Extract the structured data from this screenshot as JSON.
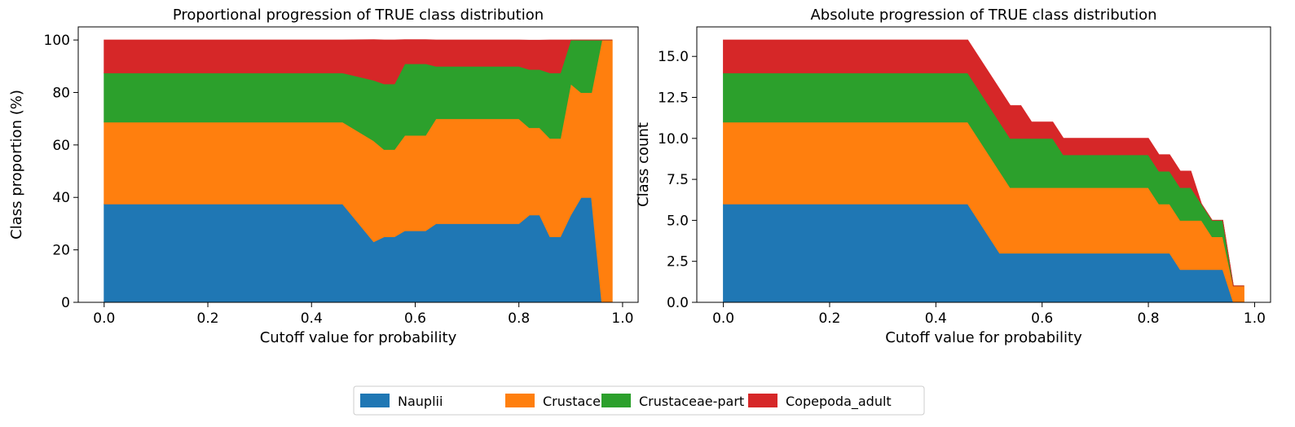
{
  "chart_data": [
    {
      "type": "area",
      "title": "Proportional progression of TRUE class distribution",
      "xlabel": "Cutoff value for probability",
      "ylabel": "Class proportion (%)",
      "xlim": [
        -0.05,
        1.03
      ],
      "ylim": [
        0,
        105
      ],
      "xticks": [
        0.0,
        0.2,
        0.4,
        0.6,
        0.8,
        1.0
      ],
      "xtick_labels": [
        "0.0",
        "0.2",
        "0.4",
        "0.6",
        "0.8",
        "1.0"
      ],
      "yticks": [
        0,
        20,
        40,
        60,
        80,
        100
      ],
      "ytick_labels": [
        "0",
        "20",
        "40",
        "60",
        "80",
        "100"
      ],
      "x": [
        0.0,
        0.46,
        0.52,
        0.54,
        0.56,
        0.58,
        0.6,
        0.62,
        0.64,
        0.8,
        0.82,
        0.84,
        0.86,
        0.88,
        0.9,
        0.92,
        0.94,
        0.96,
        0.98
      ],
      "series": [
        {
          "name": "Nauplii",
          "values": [
            37.5,
            37.5,
            23.1,
            25,
            25,
            27.3,
            27.3,
            27.3,
            30,
            30,
            33.3,
            33.3,
            25,
            25,
            33.3,
            40,
            40,
            0,
            0
          ]
        },
        {
          "name": "Crustacea",
          "values": [
            31.25,
            31.25,
            38.5,
            33.3,
            33.3,
            36.4,
            36.4,
            36.4,
            40,
            40,
            33.3,
            33.3,
            37.5,
            37.5,
            50,
            40,
            40,
            100,
            100
          ]
        },
        {
          "name": "Crustaceae-part",
          "values": [
            18.75,
            18.75,
            23.1,
            25,
            25,
            27.3,
            27.3,
            27.3,
            20,
            20,
            22.2,
            22.2,
            25,
            25,
            16.7,
            20,
            20,
            0,
            0
          ]
        },
        {
          "name": "Copepoda_adult",
          "values": [
            12.5,
            12.5,
            15.4,
            16.7,
            16.7,
            9.1,
            9.1,
            9.1,
            10,
            10,
            11.1,
            11.1,
            12.5,
            12.5,
            0,
            0,
            0,
            0,
            0
          ]
        }
      ]
    },
    {
      "type": "area",
      "title": "Absolute progression of TRUE class distribution",
      "xlabel": "Cutoff value for probability",
      "ylabel": "Class count",
      "xlim": [
        -0.05,
        1.03
      ],
      "ylim": [
        0,
        16.8
      ],
      "xticks": [
        0.0,
        0.2,
        0.4,
        0.6,
        0.8,
        1.0
      ],
      "xtick_labels": [
        "0.0",
        "0.2",
        "0.4",
        "0.6",
        "0.8",
        "1.0"
      ],
      "yticks": [
        0,
        2.5,
        5,
        7.5,
        10,
        12.5,
        15
      ],
      "ytick_labels": [
        "0.0",
        "2.5",
        "5.0",
        "7.5",
        "10.0",
        "12.5",
        "15.0"
      ],
      "x": [
        0.0,
        0.46,
        0.52,
        0.54,
        0.56,
        0.58,
        0.6,
        0.62,
        0.64,
        0.8,
        0.82,
        0.84,
        0.86,
        0.88,
        0.9,
        0.92,
        0.94,
        0.96,
        0.98
      ],
      "series": [
        {
          "name": "Nauplii",
          "values": [
            6,
            6,
            3,
            3,
            3,
            3,
            3,
            3,
            3,
            3,
            3,
            3,
            2,
            2,
            2,
            2,
            2,
            0,
            0
          ]
        },
        {
          "name": "Crustacea",
          "values": [
            5,
            5,
            5,
            4,
            4,
            4,
            4,
            4,
            4,
            4,
            3,
            3,
            3,
            3,
            3,
            2,
            2,
            1,
            1
          ]
        },
        {
          "name": "Crustaceae-part",
          "values": [
            3,
            3,
            3,
            3,
            3,
            3,
            3,
            3,
            2,
            2,
            2,
            2,
            2,
            2,
            1,
            1,
            1,
            0,
            0
          ]
        },
        {
          "name": "Copepoda_adult",
          "values": [
            2,
            2,
            2,
            2,
            2,
            1,
            1,
            1,
            1,
            1,
            1,
            1,
            1,
            1,
            0,
            0,
            0,
            0,
            0
          ]
        }
      ]
    }
  ],
  "legend": {
    "placement": "bottom-center",
    "items": [
      {
        "label": "Nauplii",
        "color": "#1f77b4"
      },
      {
        "label": "Crustacea",
        "color": "#ff7f0e"
      },
      {
        "label": "Crustaceae-part",
        "color": "#2ca02c"
      },
      {
        "label": "Copepoda_adult",
        "color": "#d62728"
      }
    ]
  }
}
